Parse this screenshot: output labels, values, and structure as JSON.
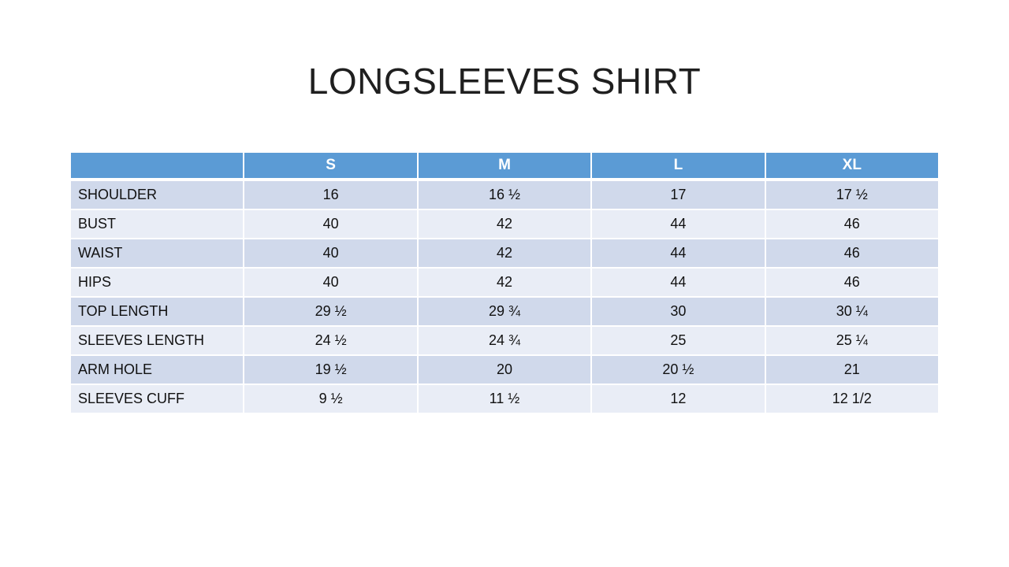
{
  "slide": {
    "background": "#ffffff",
    "title": "LONGSLEEVES SHIRT"
  },
  "chart_data": {
    "type": "table",
    "title": "LONGSLEEVES SHIRT",
    "corner_label": "",
    "columns": [
      "S",
      "M",
      "L",
      "XL"
    ],
    "rows": [
      {
        "label": "SHOULDER",
        "values": [
          "16",
          "16 ½",
          "17",
          "17 ½"
        ]
      },
      {
        "label": "BUST",
        "values": [
          "40",
          "42",
          "44",
          "46"
        ]
      },
      {
        "label": "WAIST",
        "values": [
          "40",
          "42",
          "44",
          "46"
        ]
      },
      {
        "label": "HIPS",
        "values": [
          "40",
          "42",
          "44",
          "46"
        ]
      },
      {
        "label": "TOP LENGTH",
        "values": [
          "29 ½",
          "29 ¾",
          "30",
          "30 ¼"
        ]
      },
      {
        "label": "SLEEVES LENGTH",
        "values": [
          "24 ½",
          "24 ¾",
          "25",
          "25 ¼"
        ]
      },
      {
        "label": "ARM HOLE",
        "values": [
          "19 ½",
          "20",
          "20 ½",
          "21"
        ]
      },
      {
        "label": "SLEEVES CUFF",
        "values": [
          "9 ½",
          "11 ½",
          "12",
          "12 1/2"
        ]
      }
    ],
    "layout_hints": {
      "banded_rows": true,
      "header_position": "top",
      "gridlines": "white-separators"
    }
  },
  "colors": {
    "header_bg": "#5b9bd5",
    "header_text": "#ffffff",
    "band_dark": "#d0d9eb",
    "band_light": "#e9edf6",
    "cell_text": "#111111",
    "title_text": "#1f1f1f"
  }
}
